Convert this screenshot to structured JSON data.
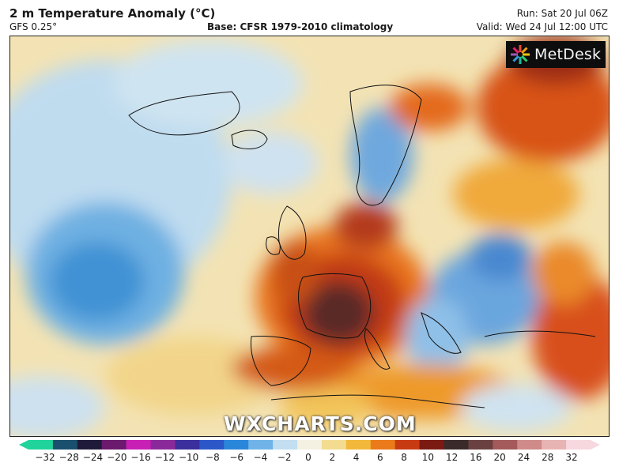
{
  "header": {
    "title": "2 m Temperature Anomaly (°C)",
    "model": "GFS 0.25°",
    "base": "Base: CFSR 1979-2010 climatology",
    "run": "Run: Sat 20 Jul 06Z",
    "valid": "Valid: Wed 24 Jul 12:00 UTC"
  },
  "logo": {
    "brand": "MetDesk",
    "icon": "metdesk-star-icon"
  },
  "watermark": "WXCHARTS.COM",
  "colorbar": {
    "ticks": [
      "−32",
      "−28",
      "−24",
      "−20",
      "−16",
      "−12",
      "−10",
      "−8",
      "−6",
      "−4",
      "−2",
      "0",
      "2",
      "4",
      "6",
      "8",
      "10",
      "12",
      "16",
      "20",
      "24",
      "28",
      "32"
    ],
    "colors": [
      "#1fd39a",
      "#1a4f6e",
      "#201a3a",
      "#6b1a6e",
      "#c81fb4",
      "#8a2a9a",
      "#3a2f9c",
      "#2b57c8",
      "#2a86d9",
      "#6fb3e8",
      "#c2def0",
      "#f4f0e2",
      "#f3dc8f",
      "#f2b83a",
      "#ea7a1a",
      "#c83a12",
      "#7a1a12",
      "#3a2a2a",
      "#6a4040",
      "#a45a5a",
      "#cf8a8a",
      "#e8b3b3",
      "#f7d8df"
    ]
  }
}
